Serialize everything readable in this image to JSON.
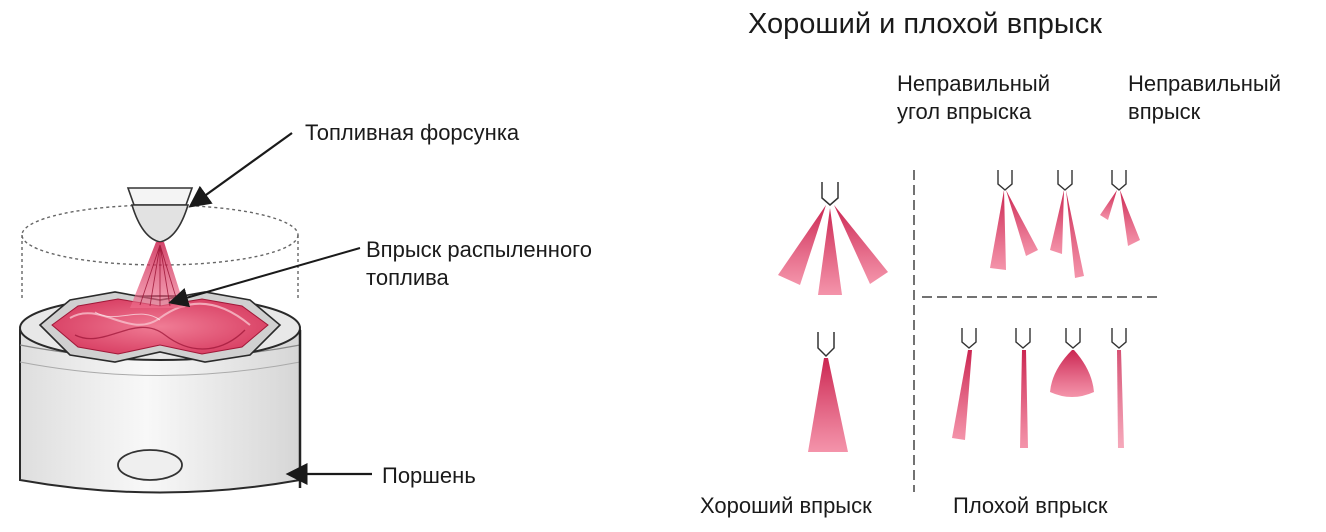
{
  "title": "Хороший и плохой впрыск",
  "left_diagram": {
    "injector_label": "Топливная форсунка",
    "spray_label": "Впрыск распыленного\nтоплива",
    "piston_label": "Поршень"
  },
  "right_diagram": {
    "wrong_angle_label": "Неправильный\nугол впрыска",
    "wrong_injection_label": "Неправильный\nвпрыск",
    "good_label": "Хороший впрыск",
    "bad_label": "Плохой впрыск"
  },
  "colors": {
    "spray": "#e0305a",
    "spray_dark": "#b01840",
    "outline": "#2a2a2a",
    "cylinder_fill": "#f2f2f2"
  }
}
